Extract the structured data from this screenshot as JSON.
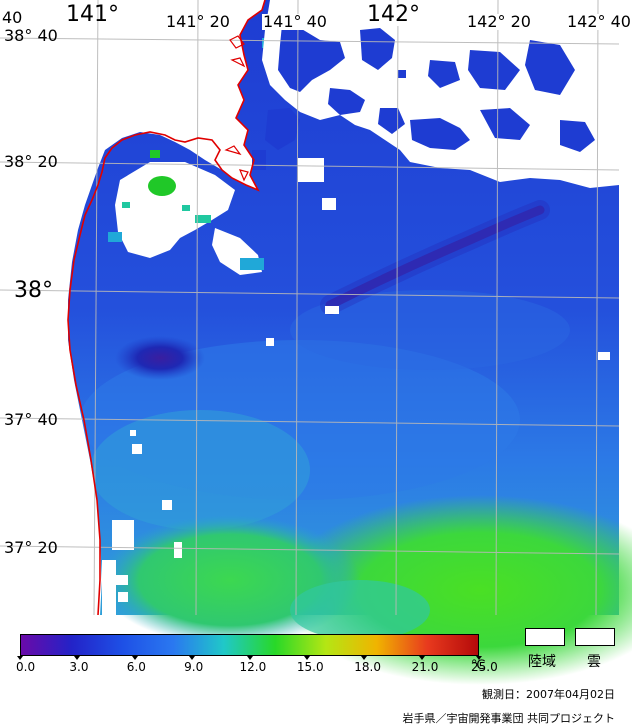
{
  "map": {
    "lon_labels": [
      "141°",
      "141° 20",
      "141° 40",
      "142°",
      "142° 20",
      "142° 40",
      "40"
    ],
    "lat_labels": [
      "38° 40",
      "38° 20",
      "38°",
      "37° 40",
      "37° 20"
    ]
  },
  "legend": {
    "unit": "℃",
    "ticks": [
      "0.0",
      "3.0",
      "6.0",
      "9.0",
      "12.0",
      "15.0",
      "18.0",
      "21.0",
      "25.0"
    ],
    "colors": [
      "#6a0aa8",
      "#2323c8",
      "#1e50e6",
      "#2a78f0",
      "#20c8c8",
      "#28d828",
      "#b4e614",
      "#f0b400",
      "#e83a1e",
      "#b40a0a"
    ],
    "land_label": "陸域",
    "cloud_label": "雲"
  },
  "footer": {
    "observation_date": "観測日：2007年04月02日",
    "credit": "岩手県／宇宙開発事業団 共同プロジェクト"
  },
  "colors": {
    "coastline": "#e00000",
    "grid": "#b4b4b4",
    "sea_dark": "#1e3cc8",
    "sea_mid": "#2a64e6",
    "sea_green": "#3ed23e"
  }
}
